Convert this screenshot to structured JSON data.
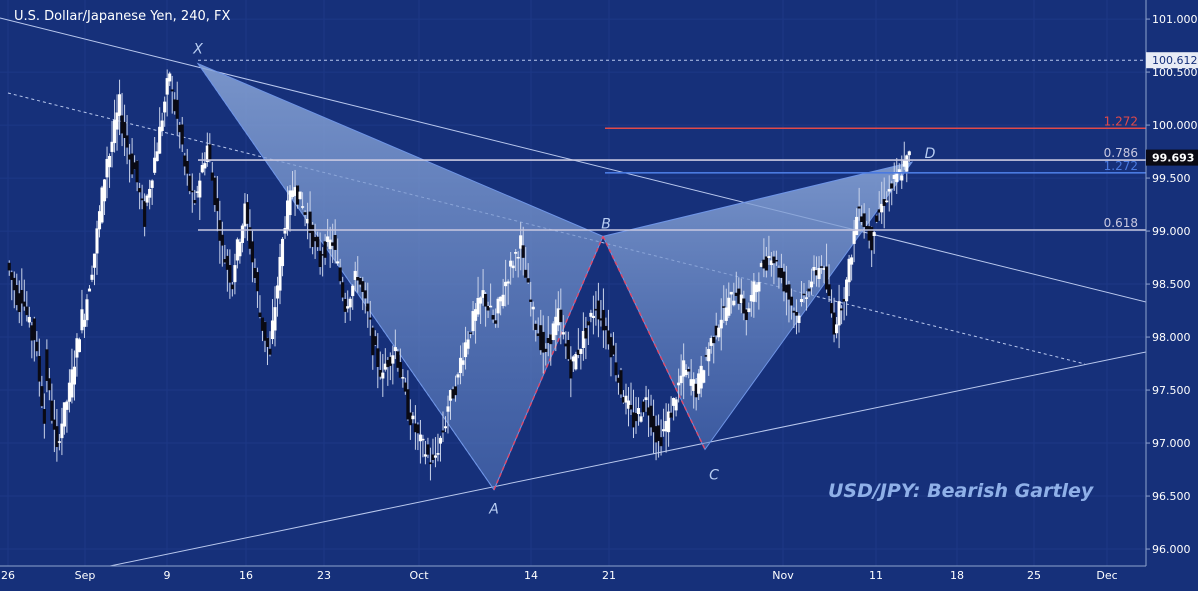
{
  "title": "U.S. Dollar/Japanese Yen, 240, FX",
  "annotation": "USD/JPY: Bearish Gartley",
  "chart_data": {
    "type": "candlestick",
    "title": "U.S. Dollar/Japanese Yen, 240, FX",
    "x_ticks": [
      "26",
      "Sep",
      "9",
      "16",
      "23",
      "Oct",
      "14",
      "21",
      "Nov",
      "11",
      "18",
      "25",
      "Dec"
    ],
    "y_ticks": [
      "101.000",
      "100.500",
      "100.000",
      "99.500",
      "99.000",
      "98.500",
      "98.000",
      "97.500",
      "97.000",
      "96.500",
      "96.000"
    ],
    "ylim": [
      95.84,
      101.18
    ],
    "price_labels": [
      {
        "text": "100.612",
        "value": 100.612
      },
      {
        "text": "99.693",
        "value": 99.693
      }
    ],
    "fib_levels": [
      {
        "label": "1.272",
        "value": 99.97,
        "color": "#e04a4a"
      },
      {
        "label": "0.786",
        "value": 99.67,
        "color": "#c8c8e0"
      },
      {
        "label": "1.272",
        "value": 99.55,
        "color": "#4a7ae0"
      },
      {
        "label": "0.618",
        "value": 99.01,
        "color": "#c8c8e0"
      }
    ],
    "pattern": [
      {
        "label": "X",
        "date": "Sep 12",
        "price": 100.58
      },
      {
        "label": "A",
        "date": "Oct 8",
        "price": 96.56
      },
      {
        "label": "B",
        "date": "Oct 17",
        "price": 98.95
      },
      {
        "label": "C",
        "date": "Oct 25",
        "price": 96.94
      },
      {
        "label": "D",
        "date": "Nov 13",
        "price": 99.65
      }
    ],
    "ohlc_path": [
      [
        98.7,
        98.3
      ],
      [
        98.5,
        98.0
      ],
      [
        98.2,
        97.2
      ],
      [
        97.8,
        96.9
      ],
      [
        97.0,
        97.5
      ],
      [
        97.5,
        98.2
      ],
      [
        98.1,
        98.8
      ],
      [
        98.8,
        99.7
      ],
      [
        99.6,
        100.2
      ],
      [
        100.1,
        99.6
      ],
      [
        99.7,
        99.1
      ],
      [
        99.2,
        99.8
      ],
      [
        99.8,
        100.5
      ],
      [
        100.4,
        99.8
      ],
      [
        99.7,
        99.2
      ],
      [
        99.3,
        99.8
      ],
      [
        99.8,
        99.0
      ],
      [
        98.9,
        98.5
      ],
      [
        98.6,
        99.2
      ],
      [
        99.2,
        98.4
      ],
      [
        98.3,
        97.8
      ],
      [
        97.9,
        98.9
      ],
      [
        99.0,
        99.5
      ],
      [
        99.4,
        99.1
      ],
      [
        99.1,
        98.7
      ],
      [
        98.8,
        98.9
      ],
      [
        98.9,
        98.3
      ],
      [
        98.3,
        98.6
      ],
      [
        98.6,
        98.1
      ],
      [
        98.0,
        97.6
      ],
      [
        97.7,
        97.9
      ],
      [
        97.9,
        97.3
      ],
      [
        97.3,
        97.0
      ],
      [
        97.0,
        96.8
      ],
      [
        96.8,
        97.2
      ],
      [
        97.3,
        97.6
      ],
      [
        97.7,
        98.1
      ],
      [
        98.1,
        98.4
      ],
      [
        98.4,
        98.1
      ],
      [
        98.2,
        98.6
      ],
      [
        98.6,
        98.9
      ],
      [
        98.8,
        98.2
      ],
      [
        98.2,
        97.8
      ],
      [
        97.9,
        98.2
      ],
      [
        98.2,
        97.7
      ],
      [
        97.7,
        98.0
      ],
      [
        98.0,
        98.3
      ],
      [
        98.3,
        98.0
      ],
      [
        98.0,
        97.5
      ],
      [
        97.5,
        97.2
      ],
      [
        97.2,
        97.4
      ],
      [
        97.4,
        97.0
      ],
      [
        97.0,
        97.3
      ],
      [
        97.3,
        97.7
      ],
      [
        97.7,
        97.5
      ],
      [
        97.5,
        97.9
      ],
      [
        97.9,
        98.2
      ],
      [
        98.2,
        98.4
      ],
      [
        98.5,
        98.2
      ],
      [
        98.2,
        98.6
      ],
      [
        98.6,
        98.8
      ],
      [
        98.8,
        98.5
      ],
      [
        98.5,
        98.2
      ],
      [
        98.2,
        98.5
      ],
      [
        98.5,
        98.7
      ],
      [
        98.7,
        98.1
      ],
      [
        98.1,
        98.5
      ],
      [
        98.5,
        99.3
      ],
      [
        99.2,
        98.9
      ],
      [
        99.0,
        99.3
      ],
      [
        99.3,
        99.5
      ],
      [
        99.5,
        99.7
      ]
    ],
    "grid": true
  }
}
